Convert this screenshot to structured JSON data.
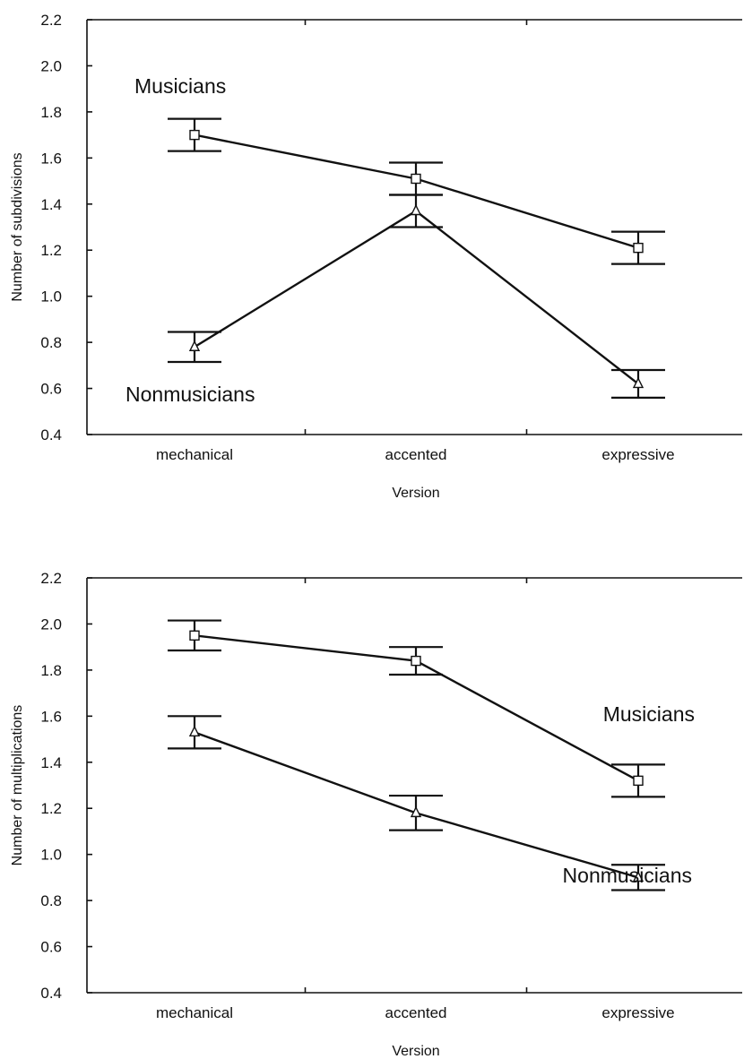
{
  "chart_data": [
    {
      "type": "line",
      "title": "",
      "xlabel": "Version",
      "ylabel": "Number of subdivisions",
      "categories": [
        "mechanical",
        "accented",
        "expressive"
      ],
      "ylim": [
        0.4,
        2.2
      ],
      "yticks": [
        "0.4",
        "0.6",
        "0.8",
        "1.0",
        "1.2",
        "1.4",
        "1.6",
        "1.8",
        "2.0",
        "2.2"
      ],
      "grid": false,
      "series": [
        {
          "name": "Musicians",
          "marker": "square",
          "values": [
            1.7,
            1.51,
            1.21
          ],
          "error": [
            0.07,
            0.07,
            0.07
          ]
        },
        {
          "name": "Nonmusicians",
          "marker": "triangle",
          "values": [
            0.78,
            1.37,
            0.62
          ],
          "error": [
            0.065,
            0.07,
            0.06
          ]
        }
      ]
    },
    {
      "type": "line",
      "title": "",
      "xlabel": "Version",
      "ylabel": "Number of multiplications",
      "categories": [
        "mechanical",
        "accented",
        "expressive"
      ],
      "ylim": [
        0.4,
        2.2
      ],
      "yticks": [
        "0.4",
        "0.6",
        "0.8",
        "1.0",
        "1.2",
        "1.4",
        "1.6",
        "1.8",
        "2.0",
        "2.2"
      ],
      "grid": false,
      "series": [
        {
          "name": "Musicians",
          "marker": "square",
          "values": [
            1.95,
            1.84,
            1.32
          ],
          "error": [
            0.065,
            0.06,
            0.07
          ]
        },
        {
          "name": "Nonmusicians",
          "marker": "triangle",
          "values": [
            1.53,
            1.18,
            0.9
          ],
          "error": [
            0.07,
            0.075,
            0.055
          ]
        }
      ]
    }
  ]
}
